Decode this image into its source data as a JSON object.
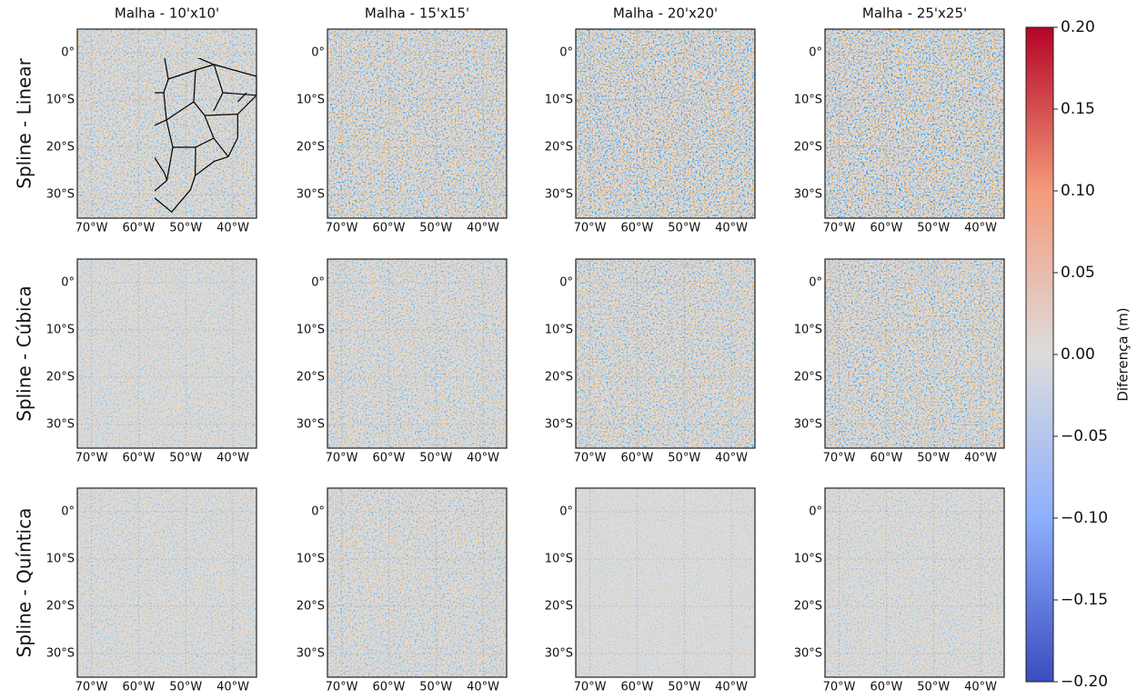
{
  "figure": {
    "column_titles": [
      "Malha - 10'x10'",
      "Malha - 15'x15'",
      "Malha - 20'x20'",
      "Malha - 25'x25'"
    ],
    "row_labels": [
      "Spline - Linear",
      "Spline - Cúbica",
      "Spline - Quíntica"
    ],
    "map": {
      "xlim": [
        -73,
        -35
      ],
      "ylim": [
        -35,
        5
      ],
      "xticks": [
        {
          "value": -70,
          "label": "70°W"
        },
        {
          "value": -60,
          "label": "60°W"
        },
        {
          "value": -50,
          "label": "50°W"
        },
        {
          "value": -40,
          "label": "40°W"
        }
      ],
      "yticks": [
        {
          "value": 0,
          "label": "0°"
        },
        {
          "value": -10,
          "label": "10°S"
        },
        {
          "value": -20,
          "label": "20°S"
        },
        {
          "value": -30,
          "label": "30°S"
        }
      ]
    },
    "colorbar": {
      "label": "Diferença (m)",
      "lim": [
        -0.2,
        0.2
      ],
      "colors": [
        "#3b4cc0",
        "#8db0fe",
        "#dddcdc",
        "#f49a7b",
        "#b40426"
      ],
      "ticks": [
        {
          "value": 0.2,
          "label": "0.20"
        },
        {
          "value": 0.15,
          "label": "0.15"
        },
        {
          "value": 0.1,
          "label": "0.10"
        },
        {
          "value": 0.05,
          "label": "0.05"
        },
        {
          "value": 0,
          "label": "0.00"
        },
        {
          "value": -0.05,
          "label": "−0.05"
        },
        {
          "value": -0.1,
          "label": "−0.10"
        },
        {
          "value": -0.15,
          "label": "−0.15"
        },
        {
          "value": -0.2,
          "label": "−0.20"
        }
      ]
    }
  }
}
